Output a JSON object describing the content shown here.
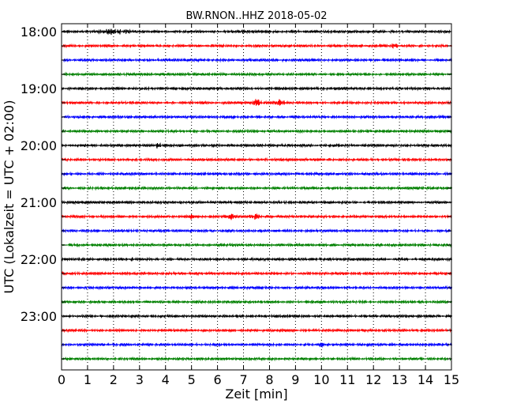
{
  "chart_data": {
    "type": "line",
    "title": "BW.RNON..HHZ 2018-05-02",
    "xlabel": "Zeit  [min]",
    "ylabel": "UTC (Lokalzeit = UTC + 02:00)",
    "xlim": [
      0,
      15
    ],
    "x_ticks": [
      0,
      1,
      2,
      3,
      4,
      5,
      6,
      7,
      8,
      9,
      10,
      11,
      12,
      13,
      14,
      15
    ],
    "y_tick_labels": [
      "18:00",
      "19:00",
      "20:00",
      "21:00",
      "22:00",
      "23:00"
    ],
    "grid": "vertical-dotted",
    "trace_colors": [
      "#000000",
      "#ff0000",
      "#0000ff",
      "#008000"
    ],
    "traces": [
      {
        "start": "18:00",
        "bursts": [
          {
            "x": 2.0,
            "width": 0.9,
            "amp": 0.7
          },
          {
            "x": 7.0,
            "width": 0.15,
            "amp": 0.5
          }
        ]
      },
      {
        "start": "18:15",
        "bursts": [
          {
            "x": 12.8,
            "width": 0.15,
            "amp": 0.8
          }
        ]
      },
      {
        "start": "18:30",
        "bursts": []
      },
      {
        "start": "18:45",
        "bursts": []
      },
      {
        "start": "19:00",
        "bursts": []
      },
      {
        "start": "19:15",
        "bursts": [
          {
            "x": 7.5,
            "width": 0.25,
            "amp": 1.0
          },
          {
            "x": 8.4,
            "width": 0.3,
            "amp": 0.8
          }
        ]
      },
      {
        "start": "19:30",
        "bursts": []
      },
      {
        "start": "19:45",
        "bursts": []
      },
      {
        "start": "20:00",
        "bursts": [
          {
            "x": 3.7,
            "width": 0.15,
            "amp": 0.7
          }
        ]
      },
      {
        "start": "20:15",
        "bursts": []
      },
      {
        "start": "20:30",
        "bursts": []
      },
      {
        "start": "20:45",
        "bursts": []
      },
      {
        "start": "21:00",
        "bursts": []
      },
      {
        "start": "21:15",
        "bursts": [
          {
            "x": 5.0,
            "width": 0.15,
            "amp": 0.8
          },
          {
            "x": 6.5,
            "width": 0.3,
            "amp": 0.8
          },
          {
            "x": 7.4,
            "width": 0.3,
            "amp": 0.7
          }
        ]
      },
      {
        "start": "21:30",
        "bursts": []
      },
      {
        "start": "21:45",
        "bursts": []
      },
      {
        "start": "22:00",
        "bursts": [
          {
            "x": 2.7,
            "width": 0.1,
            "amp": 0.4
          }
        ]
      },
      {
        "start": "22:15",
        "bursts": []
      },
      {
        "start": "22:30",
        "bursts": []
      },
      {
        "start": "22:45",
        "bursts": []
      },
      {
        "start": "23:00",
        "bursts": []
      },
      {
        "start": "23:15",
        "bursts": []
      },
      {
        "start": "23:30",
        "bursts": [
          {
            "x": 10.0,
            "width": 0.1,
            "amp": 0.4
          }
        ]
      },
      {
        "start": "23:45",
        "bursts": []
      }
    ]
  }
}
